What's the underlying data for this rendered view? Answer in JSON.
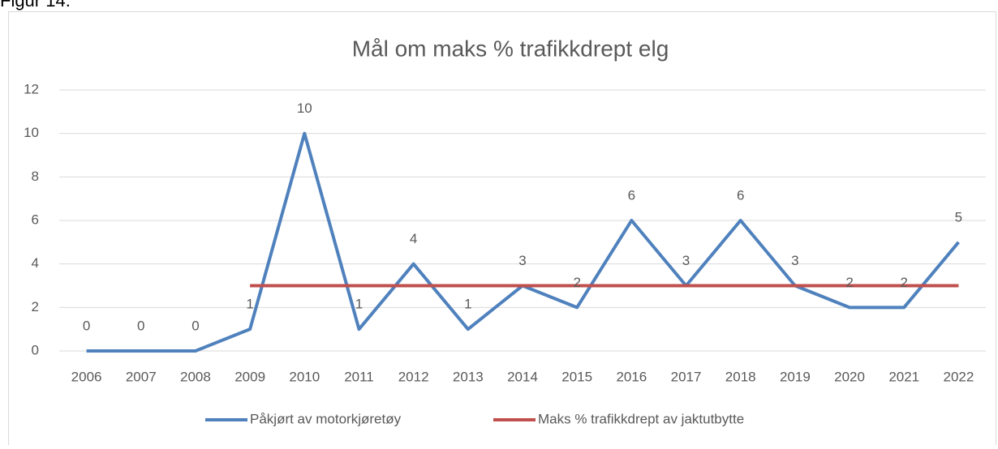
{
  "page_label": "Figur 14.",
  "chart_data": {
    "type": "line",
    "title": "Mål om maks % trafikkdrept elg",
    "categories": [
      "2006",
      "2007",
      "2008",
      "2009",
      "2010",
      "2011",
      "2012",
      "2013",
      "2014",
      "2015",
      "2016",
      "2017",
      "2018",
      "2019",
      "2020",
      "2021",
      "2022"
    ],
    "series": [
      {
        "name": "Påkjørt av motorkjøretøy",
        "color": "#4f81bd",
        "values": [
          0,
          0,
          0,
          1,
          10,
          1,
          4,
          1,
          3,
          2,
          6,
          3,
          6,
          3,
          2,
          2,
          5
        ],
        "data_labels": true
      },
      {
        "name": "Maks % trafikkdrept av jaktutbytte",
        "color": "#c0504d",
        "values": [
          null,
          null,
          null,
          3,
          3,
          3,
          3,
          3,
          3,
          3,
          3,
          3,
          3,
          3,
          3,
          3,
          3
        ],
        "data_labels": false
      }
    ],
    "ylim": [
      0,
      12
    ],
    "yticks": [
      0,
      2,
      4,
      6,
      8,
      10,
      12
    ],
    "grid": true,
    "legend": "bottom"
  }
}
